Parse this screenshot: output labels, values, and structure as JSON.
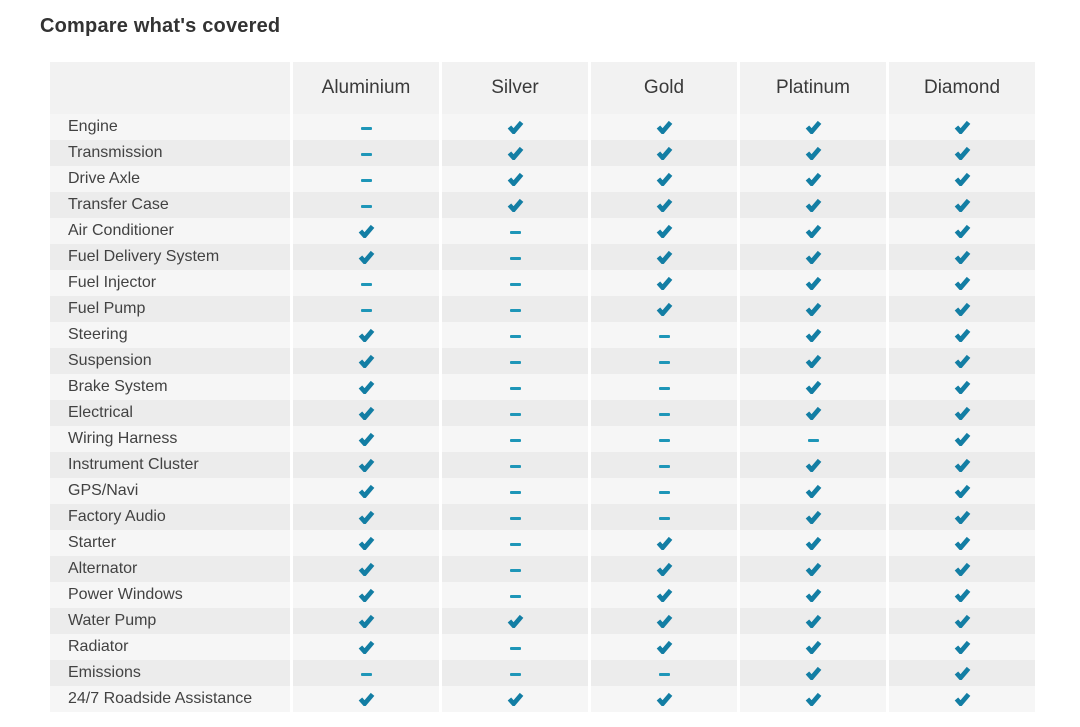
{
  "page": {
    "title": "Compare what's covered"
  },
  "colors": {
    "check": "#137ea4",
    "dash": "#1e96b8",
    "header_bg": "#f2f2f2",
    "row_odd_bg": "#f6f6f6",
    "row_even_bg": "#ececec",
    "title_text": "#333333",
    "label_text": "#424242"
  },
  "icons": {
    "check": "check-icon",
    "dash": "dash-icon"
  },
  "table": {
    "columns": [
      "Aluminium",
      "Silver",
      "Gold",
      "Platinum",
      "Diamond"
    ],
    "rows": [
      {
        "label": "Engine",
        "values": [
          "dash",
          "check",
          "check",
          "check",
          "check"
        ]
      },
      {
        "label": "Transmission",
        "values": [
          "dash",
          "check",
          "check",
          "check",
          "check"
        ]
      },
      {
        "label": "Drive Axle",
        "values": [
          "dash",
          "check",
          "check",
          "check",
          "check"
        ]
      },
      {
        "label": "Transfer Case",
        "values": [
          "dash",
          "check",
          "check",
          "check",
          "check"
        ]
      },
      {
        "label": "Air Conditioner",
        "values": [
          "check",
          "dash",
          "check",
          "check",
          "check"
        ]
      },
      {
        "label": "Fuel Delivery System",
        "values": [
          "check",
          "dash",
          "check",
          "check",
          "check"
        ]
      },
      {
        "label": "Fuel Injector",
        "values": [
          "dash",
          "dash",
          "check",
          "check",
          "check"
        ]
      },
      {
        "label": "Fuel Pump",
        "values": [
          "dash",
          "dash",
          "check",
          "check",
          "check"
        ]
      },
      {
        "label": "Steering",
        "values": [
          "check",
          "dash",
          "dash",
          "check",
          "check"
        ]
      },
      {
        "label": "Suspension",
        "values": [
          "check",
          "dash",
          "dash",
          "check",
          "check"
        ]
      },
      {
        "label": "Brake System",
        "values": [
          "check",
          "dash",
          "dash",
          "check",
          "check"
        ]
      },
      {
        "label": "Electrical",
        "values": [
          "check",
          "dash",
          "dash",
          "check",
          "check"
        ]
      },
      {
        "label": "Wiring Harness",
        "values": [
          "check",
          "dash",
          "dash",
          "dash",
          "check"
        ]
      },
      {
        "label": "Instrument Cluster",
        "values": [
          "check",
          "dash",
          "dash",
          "check",
          "check"
        ]
      },
      {
        "label": "GPS/Navi",
        "values": [
          "check",
          "dash",
          "dash",
          "check",
          "check"
        ]
      },
      {
        "label": "Factory Audio",
        "values": [
          "check",
          "dash",
          "dash",
          "check",
          "check"
        ]
      },
      {
        "label": "Starter",
        "values": [
          "check",
          "dash",
          "check",
          "check",
          "check"
        ]
      },
      {
        "label": "Alternator",
        "values": [
          "check",
          "dash",
          "check",
          "check",
          "check"
        ]
      },
      {
        "label": "Power Windows",
        "values": [
          "check",
          "dash",
          "check",
          "check",
          "check"
        ]
      },
      {
        "label": "Water Pump",
        "values": [
          "check",
          "check",
          "check",
          "check",
          "check"
        ]
      },
      {
        "label": "Radiator",
        "values": [
          "check",
          "dash",
          "check",
          "check",
          "check"
        ]
      },
      {
        "label": "Emissions",
        "values": [
          "dash",
          "dash",
          "dash",
          "check",
          "check"
        ]
      },
      {
        "label": "24/7 Roadside Assistance",
        "values": [
          "check",
          "check",
          "check",
          "check",
          "check"
        ]
      }
    ]
  }
}
